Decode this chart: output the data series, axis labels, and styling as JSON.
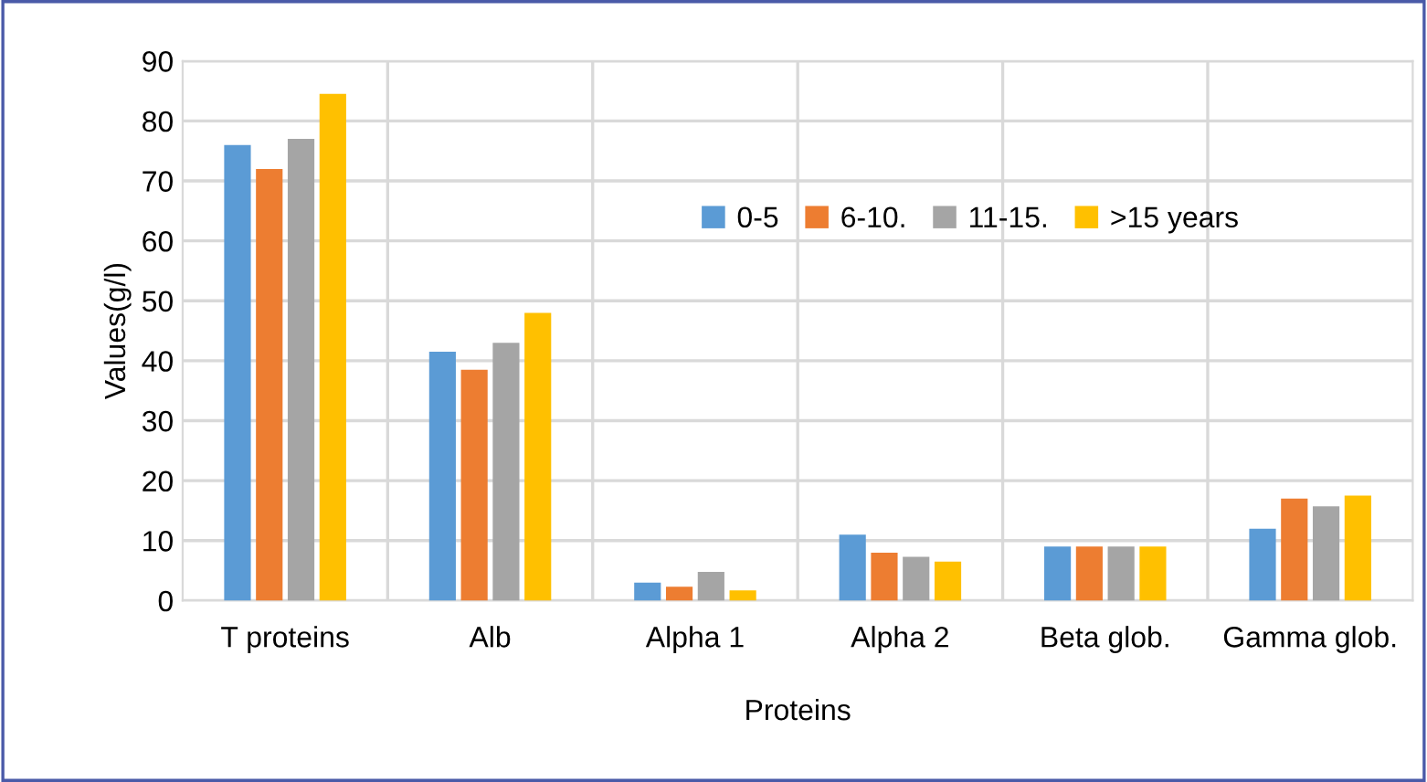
{
  "chart_data": {
    "type": "bar",
    "xlabel": "Proteins",
    "ylabel": "Values(g/l)",
    "categories": [
      "T proteins",
      "Alb",
      "Alpha 1",
      "Alpha 2",
      "Beta glob.",
      "Gamma glob."
    ],
    "series": [
      {
        "name": "0-5",
        "color": "#5b9bd5",
        "values": [
          76,
          41.5,
          3,
          11,
          9,
          12
        ]
      },
      {
        "name": "6-10.",
        "color": "#ed7d31",
        "values": [
          72,
          38.5,
          2.3,
          8,
          9,
          17
        ]
      },
      {
        "name": "11-15.",
        "color": "#a5a5a5",
        "values": [
          77,
          43,
          4.8,
          7.3,
          9,
          15.7
        ]
      },
      {
        "name": ">15 years",
        "color": "#ffc000",
        "values": [
          84.5,
          48,
          1.7,
          6.5,
          9,
          17.5
        ]
      }
    ],
    "ylim": [
      0,
      90
    ],
    "yticks": [
      0,
      10,
      20,
      30,
      40,
      50,
      60,
      70,
      80,
      90
    ],
    "grid": true,
    "legend": "top right"
  }
}
